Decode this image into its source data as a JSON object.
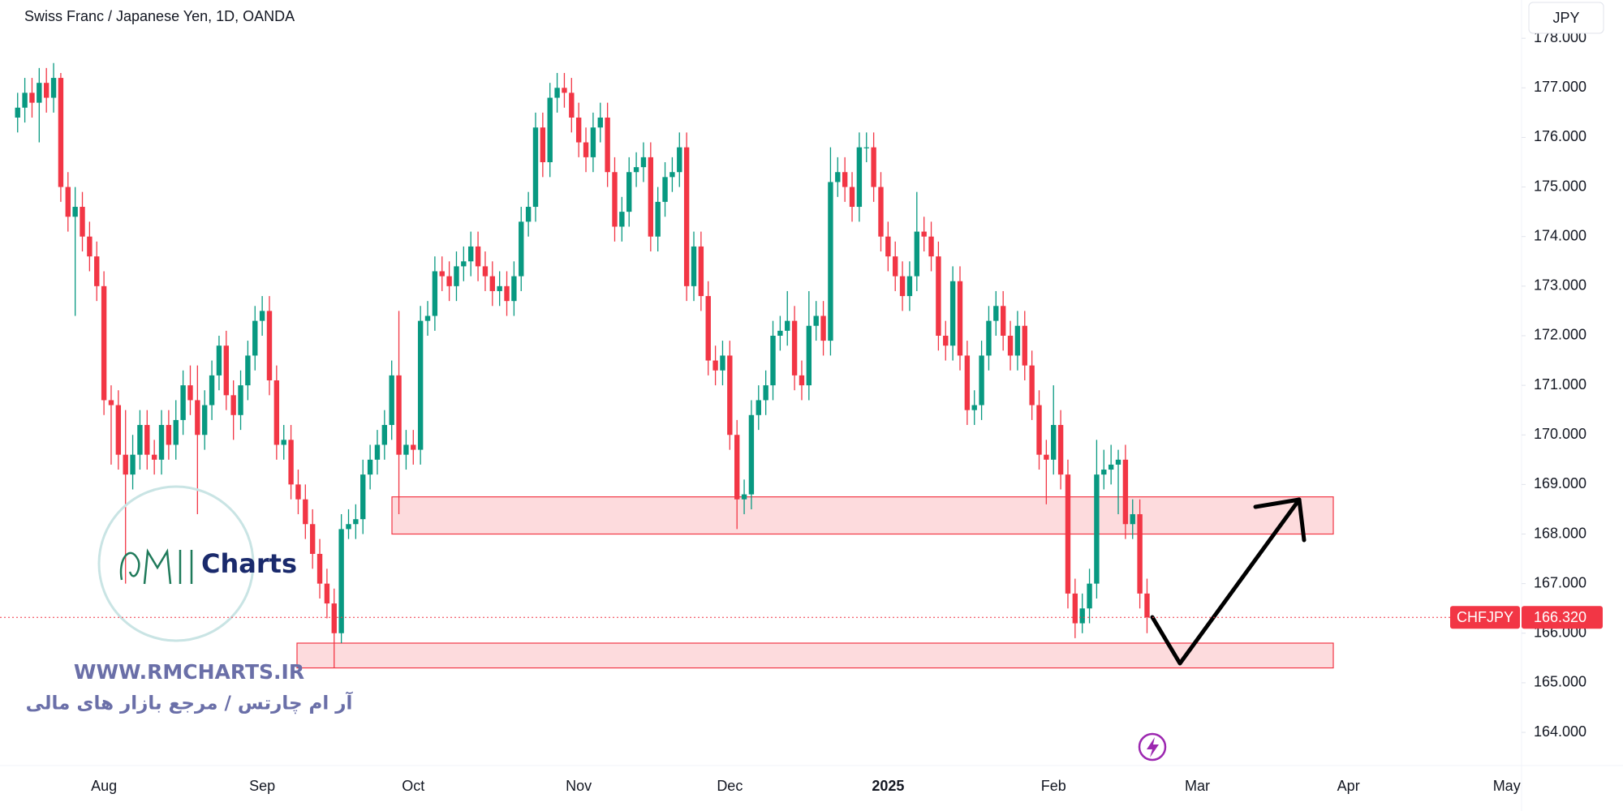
{
  "chart_data": {
    "type": "candlestick",
    "title": "Swiss Franc / Japanese Yen, 1D, OANDA",
    "currency": "JPY",
    "symbol": "CHFJPY",
    "last_price": {
      "value": 166.32,
      "label": "166.320"
    },
    "up_color": "#089981",
    "down_color": "#f23645",
    "zone_color": "#f23645",
    "zones": [
      {
        "top": 168.75,
        "bottom": 168.0
      },
      {
        "top": 165.8,
        "bottom": 165.3
      }
    ],
    "ylim": [
      163.33,
      178.15
    ],
    "yticks": [
      {
        "value": 164,
        "label": "164.000"
      },
      {
        "value": 165,
        "label": "165.000"
      },
      {
        "value": 166,
        "label": "166.000"
      },
      {
        "value": 167,
        "label": "167.000"
      },
      {
        "value": 168,
        "label": "168.000"
      },
      {
        "value": 169,
        "label": "169.000"
      },
      {
        "value": 170,
        "label": "170.000"
      },
      {
        "value": 171,
        "label": "171.000"
      },
      {
        "value": 172,
        "label": "172.000"
      },
      {
        "value": 173,
        "label": "173.000"
      },
      {
        "value": 174,
        "label": "174.000"
      },
      {
        "value": 175,
        "label": "175.000"
      },
      {
        "value": 176,
        "label": "176.000"
      },
      {
        "value": 177,
        "label": "177.000"
      },
      {
        "value": 178,
        "label": "178.000"
      }
    ],
    "categories": [
      null,
      null,
      null,
      null,
      null,
      null,
      null,
      null,
      null,
      null,
      null,
      null,
      "Aug",
      null,
      null,
      null,
      null,
      null,
      null,
      null,
      null,
      null,
      null,
      null,
      null,
      null,
      null,
      null,
      null,
      null,
      null,
      null,
      null,
      null,
      "Sep",
      null,
      null,
      null,
      null,
      null,
      null,
      null,
      null,
      null,
      null,
      null,
      null,
      null,
      null,
      null,
      null,
      null,
      null,
      null,
      null,
      "Oct",
      null,
      null,
      null,
      null,
      null,
      null,
      null,
      null,
      null,
      null,
      null,
      null,
      null,
      null,
      null,
      null,
      null,
      null,
      null,
      null,
      null,
      null,
      "Nov",
      null,
      null,
      null,
      null,
      null,
      null,
      null,
      null,
      null,
      null,
      null,
      null,
      null,
      null,
      null,
      null,
      null,
      null,
      null,
      null,
      "Dec",
      null,
      null,
      null,
      null,
      null,
      null,
      null,
      null,
      null,
      null,
      null,
      null,
      null,
      null,
      null,
      null,
      null,
      null,
      null,
      null,
      null,
      "2025",
      null,
      null,
      null,
      null,
      null,
      null,
      null,
      null,
      null,
      null,
      null,
      null,
      null,
      null,
      null,
      null,
      null,
      null,
      null,
      null,
      null,
      null,
      "Feb",
      null,
      null,
      null,
      null,
      null,
      null,
      null,
      null,
      null,
      null,
      null,
      null,
      null,
      null,
      null,
      null,
      null,
      null,
      null,
      "Mar",
      null,
      null,
      null,
      null,
      null,
      null,
      null,
      null,
      null,
      null,
      null,
      null,
      null,
      null,
      null,
      null,
      null,
      null,
      null,
      null,
      "Apr",
      null,
      null,
      null,
      null,
      null,
      null,
      null,
      null,
      null,
      null,
      null,
      null,
      null,
      null,
      null,
      null,
      null,
      null,
      null,
      null,
      null,
      "May",
      null
    ],
    "open": [
      176.4,
      176.6,
      176.9,
      176.7,
      177.1,
      176.8,
      177.2,
      175.0,
      174.4,
      174.6,
      174.0,
      173.6,
      173.0,
      170.7,
      170.6,
      169.6,
      169.2,
      169.6,
      170.2,
      169.6,
      169.5,
      170.2,
      169.8,
      170.3,
      171.0,
      170.7,
      170.0,
      170.6,
      171.2,
      171.8,
      170.8,
      170.4,
      171.0,
      171.6,
      172.3,
      172.5,
      171.1,
      169.8,
      169.9,
      169.0,
      168.7,
      168.2,
      167.6,
      167.0,
      166.6,
      166.0,
      168.1,
      168.2,
      168.3,
      169.2,
      169.5,
      169.8,
      170.2,
      171.2,
      169.6,
      169.8,
      169.7,
      172.3,
      172.4,
      173.3,
      173.2,
      173.0,
      173.4,
      173.5,
      173.8,
      173.4,
      173.2,
      172.9,
      173.0,
      172.7,
      173.2,
      174.3,
      174.6,
      176.2,
      175.5,
      176.8,
      177.0,
      176.9,
      176.4,
      175.9,
      175.6,
      176.2,
      176.4,
      175.3,
      174.2,
      174.5,
      175.3,
      175.4,
      175.6,
      174.0,
      174.7,
      175.2,
      175.3,
      175.8,
      173.0,
      173.8,
      172.8,
      171.5,
      171.3,
      171.6,
      170.0,
      168.7,
      168.8,
      170.4,
      170.7,
      171.0,
      172.0,
      172.1,
      172.3,
      171.2,
      171.0,
      172.2,
      172.4,
      171.9,
      175.1,
      175.3,
      175.0,
      174.6,
      175.8,
      175.8,
      175.0,
      174.0,
      173.6,
      173.2,
      172.8,
      173.2,
      174.1,
      174.0,
      173.6,
      172.0,
      171.8,
      173.1,
      171.6,
      170.5,
      170.6,
      171.6,
      172.3,
      172.6,
      172.0,
      171.6,
      172.2,
      171.4,
      170.6,
      169.6,
      169.5,
      170.2,
      169.2,
      166.8,
      166.2,
      166.5,
      167.0,
      169.2,
      169.3,
      169.4,
      169.5,
      168.2,
      168.4,
      166.8,
      null,
      null,
      null,
      null,
      null,
      null,
      null,
      null,
      null,
      null,
      null,
      null,
      null,
      null,
      null,
      null,
      null,
      null,
      null,
      null,
      null,
      null,
      null,
      null,
      null,
      null,
      null,
      null,
      null,
      null,
      null,
      null,
      null,
      null,
      null,
      null,
      null,
      null,
      null,
      null,
      null,
      null,
      null,
      null,
      null,
      null,
      null,
      null,
      null,
      null,
      null
    ],
    "high": [
      176.9,
      177.2,
      177.2,
      177.4,
      177.4,
      177.5,
      177.3,
      175.3,
      175.0,
      174.9,
      174.3,
      173.9,
      173.3,
      171.0,
      170.9,
      170.5,
      170.0,
      170.5,
      170.5,
      169.9,
      170.5,
      170.5,
      170.7,
      171.3,
      171.4,
      171.4,
      170.9,
      171.5,
      172.0,
      172.1,
      171.1,
      171.3,
      171.9,
      172.6,
      172.8,
      172.8,
      171.4,
      170.2,
      170.2,
      169.3,
      169.0,
      168.5,
      167.9,
      167.3,
      166.9,
      168.4,
      168.5,
      168.6,
      169.5,
      169.8,
      170.1,
      170.5,
      171.5,
      172.5,
      170.1,
      170.1,
      172.6,
      172.7,
      173.6,
      173.6,
      173.5,
      173.7,
      173.8,
      174.1,
      174.1,
      173.7,
      173.5,
      173.3,
      173.3,
      173.5,
      174.6,
      174.9,
      176.5,
      176.5,
      177.1,
      177.3,
      177.3,
      177.2,
      176.7,
      176.2,
      176.5,
      176.7,
      176.7,
      175.6,
      174.8,
      175.6,
      175.7,
      175.9,
      175.9,
      175.0,
      175.5,
      175.6,
      176.1,
      176.1,
      174.1,
      174.1,
      173.1,
      171.8,
      171.9,
      171.9,
      170.3,
      169.1,
      170.7,
      171.0,
      171.3,
      172.3,
      172.4,
      172.9,
      172.6,
      171.5,
      172.9,
      172.7,
      172.7,
      175.8,
      175.6,
      175.6,
      175.3,
      176.1,
      176.1,
      176.1,
      175.3,
      174.3,
      173.9,
      173.5,
      173.5,
      174.9,
      174.4,
      174.3,
      173.9,
      172.3,
      173.4,
      173.4,
      171.9,
      170.9,
      171.9,
      172.6,
      172.9,
      172.9,
      172.3,
      172.5,
      172.5,
      171.7,
      170.9,
      169.9,
      171.0,
      170.5,
      169.5,
      167.1,
      166.8,
      167.3,
      169.9,
      169.7,
      169.8,
      169.7,
      169.8,
      168.7,
      168.7,
      167.1,
      null,
      null,
      null,
      null,
      null,
      null,
      null,
      null,
      null,
      null,
      null,
      null,
      null,
      null,
      null,
      null,
      null,
      null,
      null,
      null,
      null,
      null,
      null,
      null,
      null,
      null,
      null,
      null,
      null,
      null,
      null,
      null,
      null,
      null,
      null,
      null,
      null,
      null,
      null,
      null,
      null,
      null,
      null,
      null,
      null,
      null,
      null,
      null,
      null,
      null,
      null
    ],
    "low": [
      176.1,
      176.3,
      176.4,
      175.9,
      176.5,
      176.5,
      174.7,
      174.1,
      172.4,
      173.7,
      173.3,
      172.7,
      170.4,
      169.4,
      169.3,
      167.0,
      168.9,
      169.3,
      169.3,
      169.2,
      169.2,
      169.5,
      169.5,
      170.0,
      170.4,
      168.4,
      169.7,
      170.3,
      170.9,
      170.5,
      169.9,
      170.1,
      170.7,
      171.3,
      172.0,
      170.8,
      169.5,
      169.5,
      168.7,
      168.4,
      167.9,
      167.3,
      166.7,
      166.3,
      165.3,
      165.8,
      167.9,
      167.9,
      168.0,
      168.9,
      169.2,
      169.5,
      169.9,
      168.4,
      169.3,
      169.4,
      169.4,
      172.0,
      172.1,
      172.9,
      172.7,
      172.7,
      173.1,
      173.2,
      173.1,
      172.9,
      172.6,
      172.6,
      172.4,
      172.4,
      172.9,
      174.0,
      174.3,
      175.2,
      175.2,
      176.5,
      176.6,
      176.1,
      175.6,
      175.3,
      175.3,
      175.9,
      175.0,
      173.9,
      173.9,
      174.2,
      175.0,
      175.1,
      173.7,
      173.7,
      174.4,
      174.9,
      175.0,
      172.7,
      172.7,
      172.5,
      171.2,
      171.0,
      171.0,
      169.7,
      168.1,
      168.4,
      168.5,
      170.1,
      170.4,
      170.7,
      171.7,
      171.8,
      170.9,
      170.7,
      170.7,
      171.9,
      171.6,
      171.6,
      174.8,
      174.7,
      174.3,
      174.3,
      175.5,
      174.7,
      173.7,
      173.3,
      172.9,
      172.5,
      172.5,
      172.9,
      173.7,
      173.3,
      171.7,
      171.5,
      171.5,
      171.3,
      170.2,
      170.2,
      170.3,
      171.3,
      172.0,
      171.7,
      171.3,
      171.3,
      171.1,
      170.3,
      169.3,
      168.6,
      169.2,
      168.9,
      166.5,
      165.9,
      166.0,
      166.2,
      166.7,
      168.9,
      169.0,
      168.4,
      167.9,
      167.9,
      166.5,
      166.0,
      null,
      null,
      null,
      null,
      null,
      null,
      null,
      null,
      null,
      null,
      null,
      null,
      null,
      null,
      null,
      null,
      null,
      null,
      null,
      null,
      null,
      null,
      null,
      null,
      null,
      null,
      null,
      null,
      null,
      null,
      null,
      null,
      null,
      null,
      null,
      null,
      null,
      null,
      null,
      null,
      null,
      null,
      null,
      null,
      null,
      null,
      null,
      null,
      null,
      null,
      null
    ],
    "close": [
      176.6,
      176.9,
      176.7,
      177.1,
      176.8,
      177.2,
      175.0,
      174.4,
      174.6,
      174.0,
      173.6,
      173.0,
      170.7,
      170.6,
      169.6,
      169.2,
      169.6,
      170.2,
      169.6,
      169.5,
      170.2,
      169.8,
      170.3,
      171.0,
      170.7,
      170.0,
      170.6,
      171.2,
      171.8,
      170.8,
      170.4,
      171.0,
      171.6,
      172.3,
      172.5,
      171.1,
      169.8,
      169.9,
      169.0,
      168.7,
      168.2,
      167.6,
      167.0,
      166.6,
      166.0,
      168.1,
      168.2,
      168.3,
      169.2,
      169.5,
      169.8,
      170.2,
      171.2,
      169.6,
      169.8,
      169.7,
      172.3,
      172.4,
      173.3,
      173.2,
      173.0,
      173.4,
      173.5,
      173.8,
      173.4,
      173.2,
      172.9,
      173.0,
      172.7,
      173.2,
      174.3,
      174.6,
      176.2,
      175.5,
      176.8,
      177.0,
      176.9,
      176.4,
      175.9,
      175.6,
      176.2,
      176.4,
      175.3,
      174.2,
      174.5,
      175.3,
      175.4,
      175.6,
      174.0,
      174.7,
      175.2,
      175.3,
      175.8,
      173.0,
      173.8,
      172.8,
      171.5,
      171.3,
      171.6,
      170.0,
      168.7,
      168.8,
      170.4,
      170.7,
      171.0,
      172.0,
      172.1,
      172.3,
      171.2,
      171.0,
      172.2,
      172.4,
      171.9,
      175.1,
      175.3,
      175.0,
      174.6,
      175.8,
      175.8,
      175.0,
      174.0,
      173.6,
      173.2,
      172.8,
      173.2,
      174.1,
      174.0,
      173.6,
      172.0,
      171.8,
      173.1,
      171.6,
      170.5,
      170.6,
      171.6,
      172.3,
      172.6,
      172.0,
      171.6,
      172.2,
      171.4,
      170.6,
      169.6,
      169.5,
      170.2,
      169.2,
      166.8,
      166.2,
      166.5,
      167.0,
      169.2,
      169.3,
      169.4,
      169.5,
      168.2,
      168.4,
      166.8,
      166.32,
      null,
      null,
      null,
      null,
      null,
      null,
      null,
      null,
      null,
      null,
      null,
      null,
      null,
      null,
      null,
      null,
      null,
      null,
      null,
      null,
      null,
      null,
      null,
      null,
      null,
      null,
      null,
      null,
      null,
      null,
      null,
      null,
      null,
      null,
      null,
      null,
      null,
      null,
      null,
      null,
      null,
      null,
      null,
      null,
      null,
      null,
      null,
      null,
      null,
      null,
      null
    ]
  },
  "watermark": {
    "brand": "Charts",
    "url": "WWW.RMCHARTS.IR",
    "tagline": "آر ام چارتس / مرجع بازار های مالی"
  }
}
